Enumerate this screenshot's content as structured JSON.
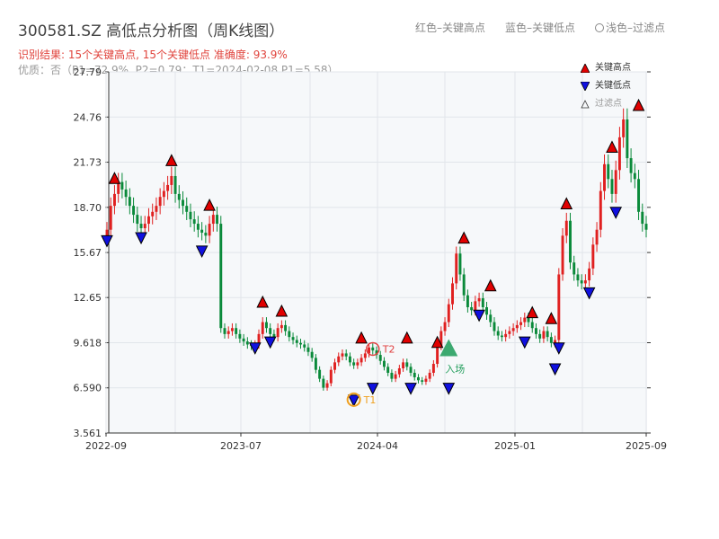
{
  "page": {
    "title": "300581.SZ 高低点分析图（周K线图）",
    "top_legend": {
      "red": "红色–关键高点",
      "blue": "蓝色–关键低点",
      "filtered": "浅色–过滤点"
    },
    "subtitle_result": "识别结果: 15个关键高点, 15个关键低点  准确度: 93.9%",
    "subtitle_quality": "优质：否（P1=72.9%, P2=0.79；T1=2024-02-08 P1=5.58）"
  },
  "legend": {
    "high": "关键高点",
    "low": "关键低点",
    "filtered": "过滤点"
  },
  "colors": {
    "up": "#e02020",
    "down": "#0a8a3a",
    "high_marker": "#e00000",
    "low_marker": "#1010e0",
    "grid": "#e1e5ea",
    "plot_bg": "#f6f8fa",
    "t_marker": "#f0a020",
    "t2_marker": "#e04040",
    "entry": "#28a060"
  },
  "chart_data": {
    "type": "candlestick",
    "ylim": [
      3.561,
      27.79
    ],
    "yticks": [
      "27.79",
      "24.76",
      "21.73",
      "18.70",
      "15.67",
      "12.65",
      "9.618",
      "6.590",
      "3.561"
    ],
    "xlim": [
      "2022-09",
      "2025-09"
    ],
    "xticks": [
      "2022-09",
      "2023-07",
      "2024-04",
      "2025-01",
      "2025-09"
    ],
    "closes": [
      17.2,
      18.8,
      19.6,
      20.4,
      19.9,
      19.4,
      18.8,
      18.2,
      17.6,
      17.3,
      17.6,
      18.1,
      18.4,
      18.8,
      19.4,
      19.8,
      20.2,
      20.8,
      19.6,
      19.2,
      18.8,
      18.4,
      17.9,
      17.6,
      17.2,
      17.0,
      16.8,
      17.6,
      18.2,
      17.6,
      10.6,
      10.2,
      10.4,
      10.6,
      10.2,
      9.9,
      9.7,
      9.5,
      9.4,
      9.5,
      10.2,
      11.0,
      10.6,
      10.2,
      10.0,
      10.6,
      10.8,
      10.4,
      10.0,
      9.8,
      9.6,
      9.5,
      9.3,
      9.0,
      8.6,
      7.8,
      7.2,
      6.6,
      6.9,
      7.8,
      8.3,
      8.7,
      8.9,
      8.7,
      8.3,
      8.1,
      8.3,
      8.6,
      8.9,
      9.3,
      9.1,
      8.8,
      8.4,
      8.0,
      7.6,
      7.2,
      7.5,
      7.9,
      8.3,
      8.0,
      7.6,
      7.3,
      7.1,
      7.0,
      7.2,
      7.6,
      8.2,
      9.4,
      10.4,
      11.0,
      12.2,
      13.6,
      15.6,
      14.2,
      12.8,
      12.0,
      11.8,
      12.4,
      12.6,
      12.0,
      11.5,
      11.0,
      10.4,
      10.1,
      10.0,
      10.2,
      10.4,
      10.6,
      10.8,
      11.0,
      11.3,
      11.0,
      10.6,
      10.2,
      9.9,
      10.4,
      10.0,
      9.6,
      9.8,
      14.2,
      16.8,
      17.8,
      15.0,
      14.2,
      13.8,
      13.6,
      13.8,
      14.6,
      16.2,
      17.2,
      19.8,
      21.6,
      20.6,
      19.6,
      21.2,
      23.4,
      24.6,
      22.0,
      21.0,
      20.6,
      18.4,
      17.6,
      17.2
    ],
    "key_highs": [
      {
        "index": 2,
        "value": 20.6
      },
      {
        "index": 17,
        "value": 21.8
      },
      {
        "index": 27,
        "value": 18.8
      },
      {
        "index": 41,
        "value": 12.3
      },
      {
        "index": 46,
        "value": 11.7
      },
      {
        "index": 67,
        "value": 9.9
      },
      {
        "index": 79,
        "value": 9.9
      },
      {
        "index": 87,
        "value": 9.6
      },
      {
        "index": 94,
        "value": 16.6
      },
      {
        "index": 101,
        "value": 13.4
      },
      {
        "index": 112,
        "value": 11.6
      },
      {
        "index": 117,
        "value": 11.2
      },
      {
        "index": 121,
        "value": 18.9
      },
      {
        "index": 133,
        "value": 22.7
      },
      {
        "index": 140,
        "value": 25.5
      }
    ],
    "key_lows": [
      {
        "index": 0,
        "value": 16.5
      },
      {
        "index": 9,
        "value": 16.7
      },
      {
        "index": 25,
        "value": 15.8
      },
      {
        "index": 39,
        "value": 9.3
      },
      {
        "index": 43,
        "value": 9.7
      },
      {
        "index": 65,
        "value": 5.8
      },
      {
        "index": 70,
        "value": 6.6
      },
      {
        "index": 80,
        "value": 6.6
      },
      {
        "index": 90,
        "value": 6.6
      },
      {
        "index": 98,
        "value": 11.5
      },
      {
        "index": 110,
        "value": 9.7
      },
      {
        "index": 118,
        "value": 7.9
      },
      {
        "index": 119,
        "value": 9.3
      },
      {
        "index": 127,
        "value": 13.0
      },
      {
        "index": 134,
        "value": 18.4
      }
    ],
    "annotations": [
      {
        "label": "T1",
        "index": 65,
        "value": 5.8
      },
      {
        "label": "T2",
        "index": 70,
        "value": 9.2
      },
      {
        "label": "入场",
        "index": 90,
        "value": 9.2
      }
    ]
  }
}
